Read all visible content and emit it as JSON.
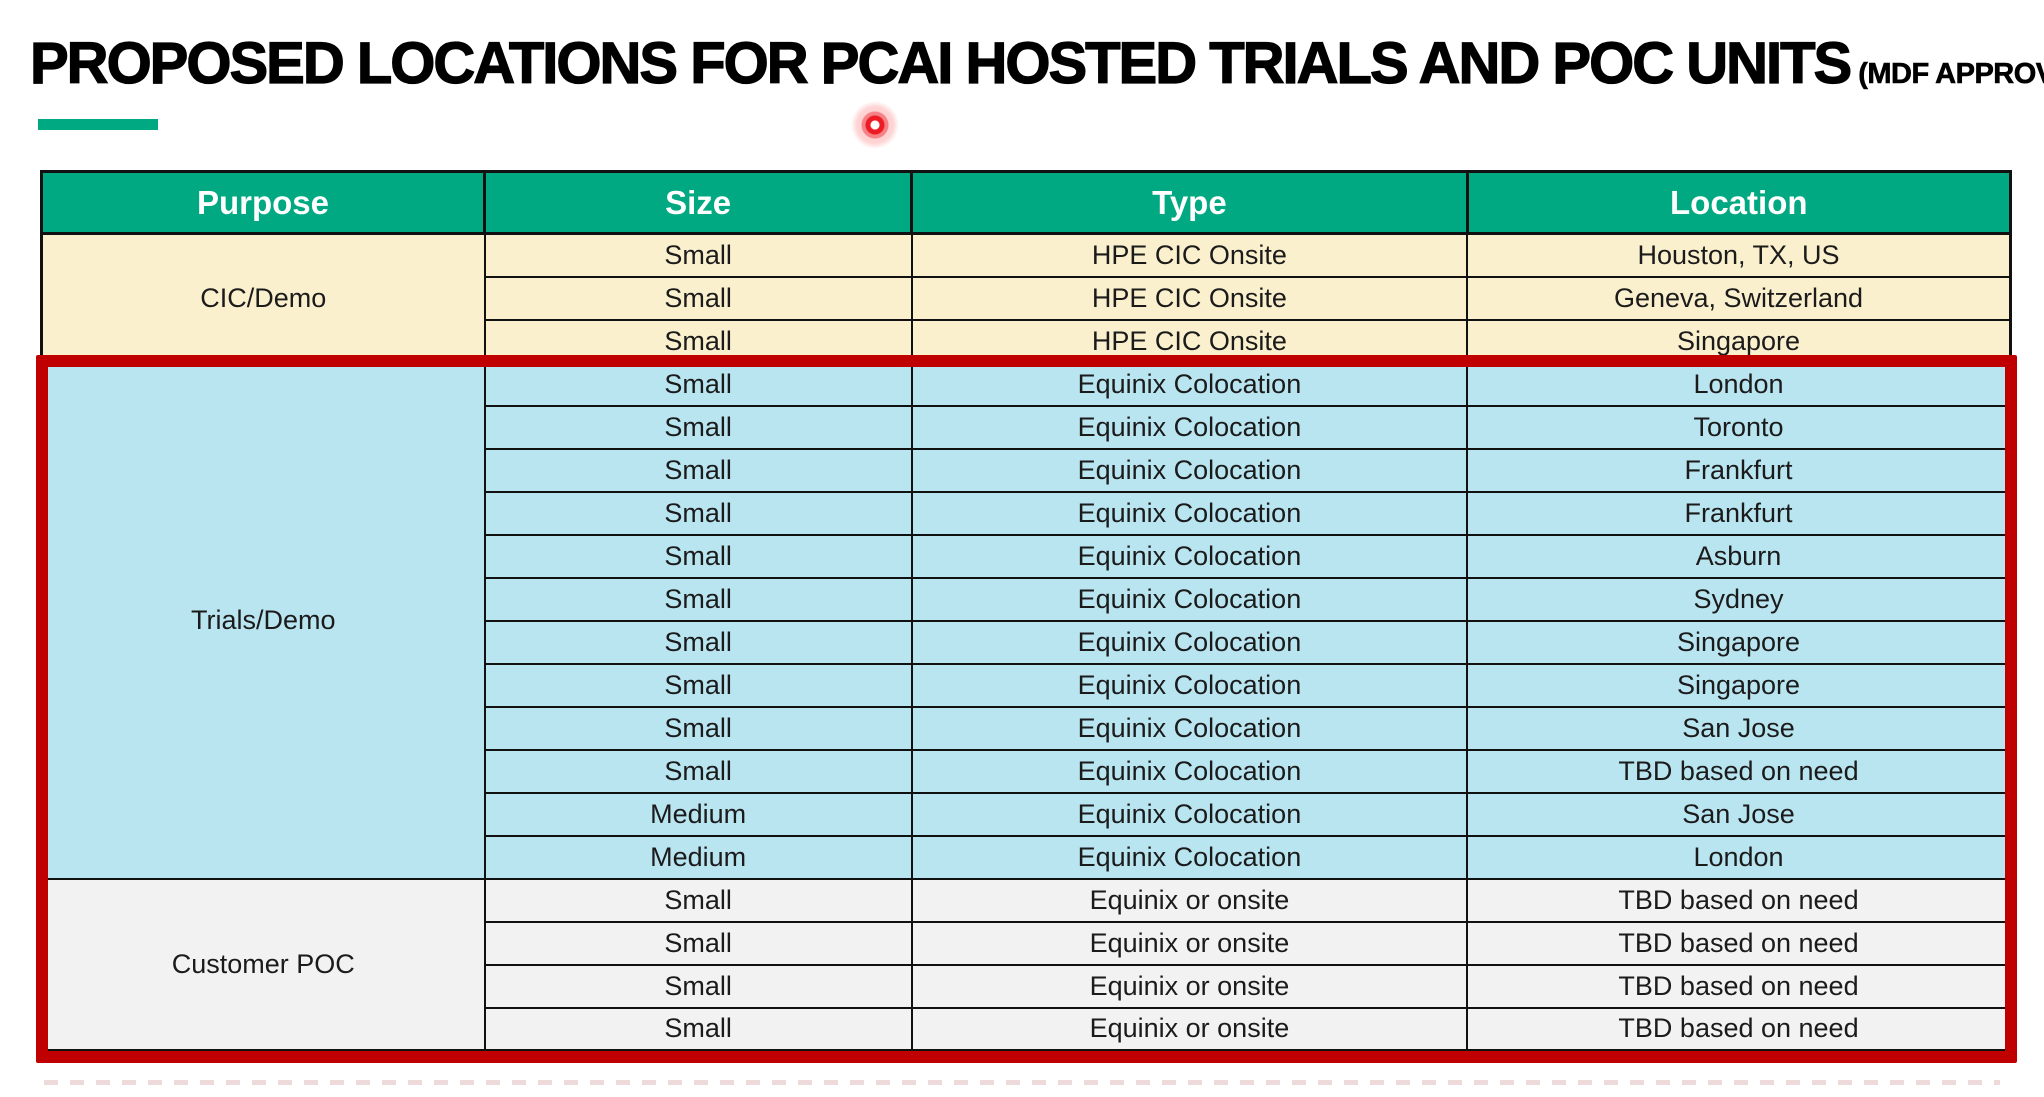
{
  "title": {
    "main": "PROPOSED LOCATIONS FOR PCAI HOSTED TRIALS AND POC UNITS",
    "suffix": "(MDF APPROVED)"
  },
  "colors": {
    "brand_green": "#00A982",
    "section_cic_bg": "#FBF0CE",
    "section_trials_bg": "#B9E5F1",
    "section_poc_bg": "#F2F2F2",
    "highlight_red": "#C00000",
    "header_text": "#ffffff",
    "body_text": "#1b1b1b"
  },
  "table": {
    "columns": [
      "Purpose",
      "Size",
      "Type",
      "Location"
    ],
    "sections": [
      {
        "id": "cic-demo",
        "purpose": "CIC/Demo",
        "bg": "#FBF0CE",
        "rows": [
          {
            "size": "Small",
            "type": "HPE CIC Onsite",
            "location": "Houston, TX, US"
          },
          {
            "size": "Small",
            "type": "HPE CIC Onsite",
            "location": "Geneva, Switzerland"
          },
          {
            "size": "Small",
            "type": "HPE CIC Onsite",
            "location": "Singapore"
          }
        ]
      },
      {
        "id": "trials-demo",
        "purpose": "Trials/Demo",
        "bg": "#B9E5F1",
        "rows": [
          {
            "size": "Small",
            "type": "Equinix Colocation",
            "location": "London"
          },
          {
            "size": "Small",
            "type": "Equinix Colocation",
            "location": "Toronto"
          },
          {
            "size": "Small",
            "type": "Equinix Colocation",
            "location": "Frankfurt"
          },
          {
            "size": "Small",
            "type": "Equinix Colocation",
            "location": "Frankfurt"
          },
          {
            "size": "Small",
            "type": "Equinix Colocation",
            "location": "Asburn"
          },
          {
            "size": "Small",
            "type": "Equinix Colocation",
            "location": "Sydney"
          },
          {
            "size": "Small",
            "type": "Equinix Colocation",
            "location": "Singapore"
          },
          {
            "size": "Small",
            "type": "Equinix Colocation",
            "location": "Singapore"
          },
          {
            "size": "Small",
            "type": "Equinix Colocation",
            "location": "San Jose"
          },
          {
            "size": "Small",
            "type": "Equinix Colocation",
            "location": "TBD based on need"
          },
          {
            "size": "Medium",
            "type": "Equinix Colocation",
            "location": "San Jose"
          },
          {
            "size": "Medium",
            "type": "Equinix Colocation",
            "location": "London"
          }
        ]
      },
      {
        "id": "customer-poc",
        "purpose": "Customer POC",
        "bg": "#F2F2F2",
        "rows": [
          {
            "size": "Small",
            "type": "Equinix or onsite",
            "location": "TBD based on need"
          },
          {
            "size": "Small",
            "type": "Equinix or onsite",
            "location": "TBD based on need"
          },
          {
            "size": "Small",
            "type": "Equinix or onsite",
            "location": "TBD based on need"
          },
          {
            "size": "Small",
            "type": "Equinix or onsite",
            "location": "TBD based on need"
          }
        ]
      }
    ]
  },
  "annotations": {
    "highlight_box": "red emphasis box around Trials/Demo and Customer POC sections",
    "laser_pointer": "red laser pointer dot near title"
  }
}
